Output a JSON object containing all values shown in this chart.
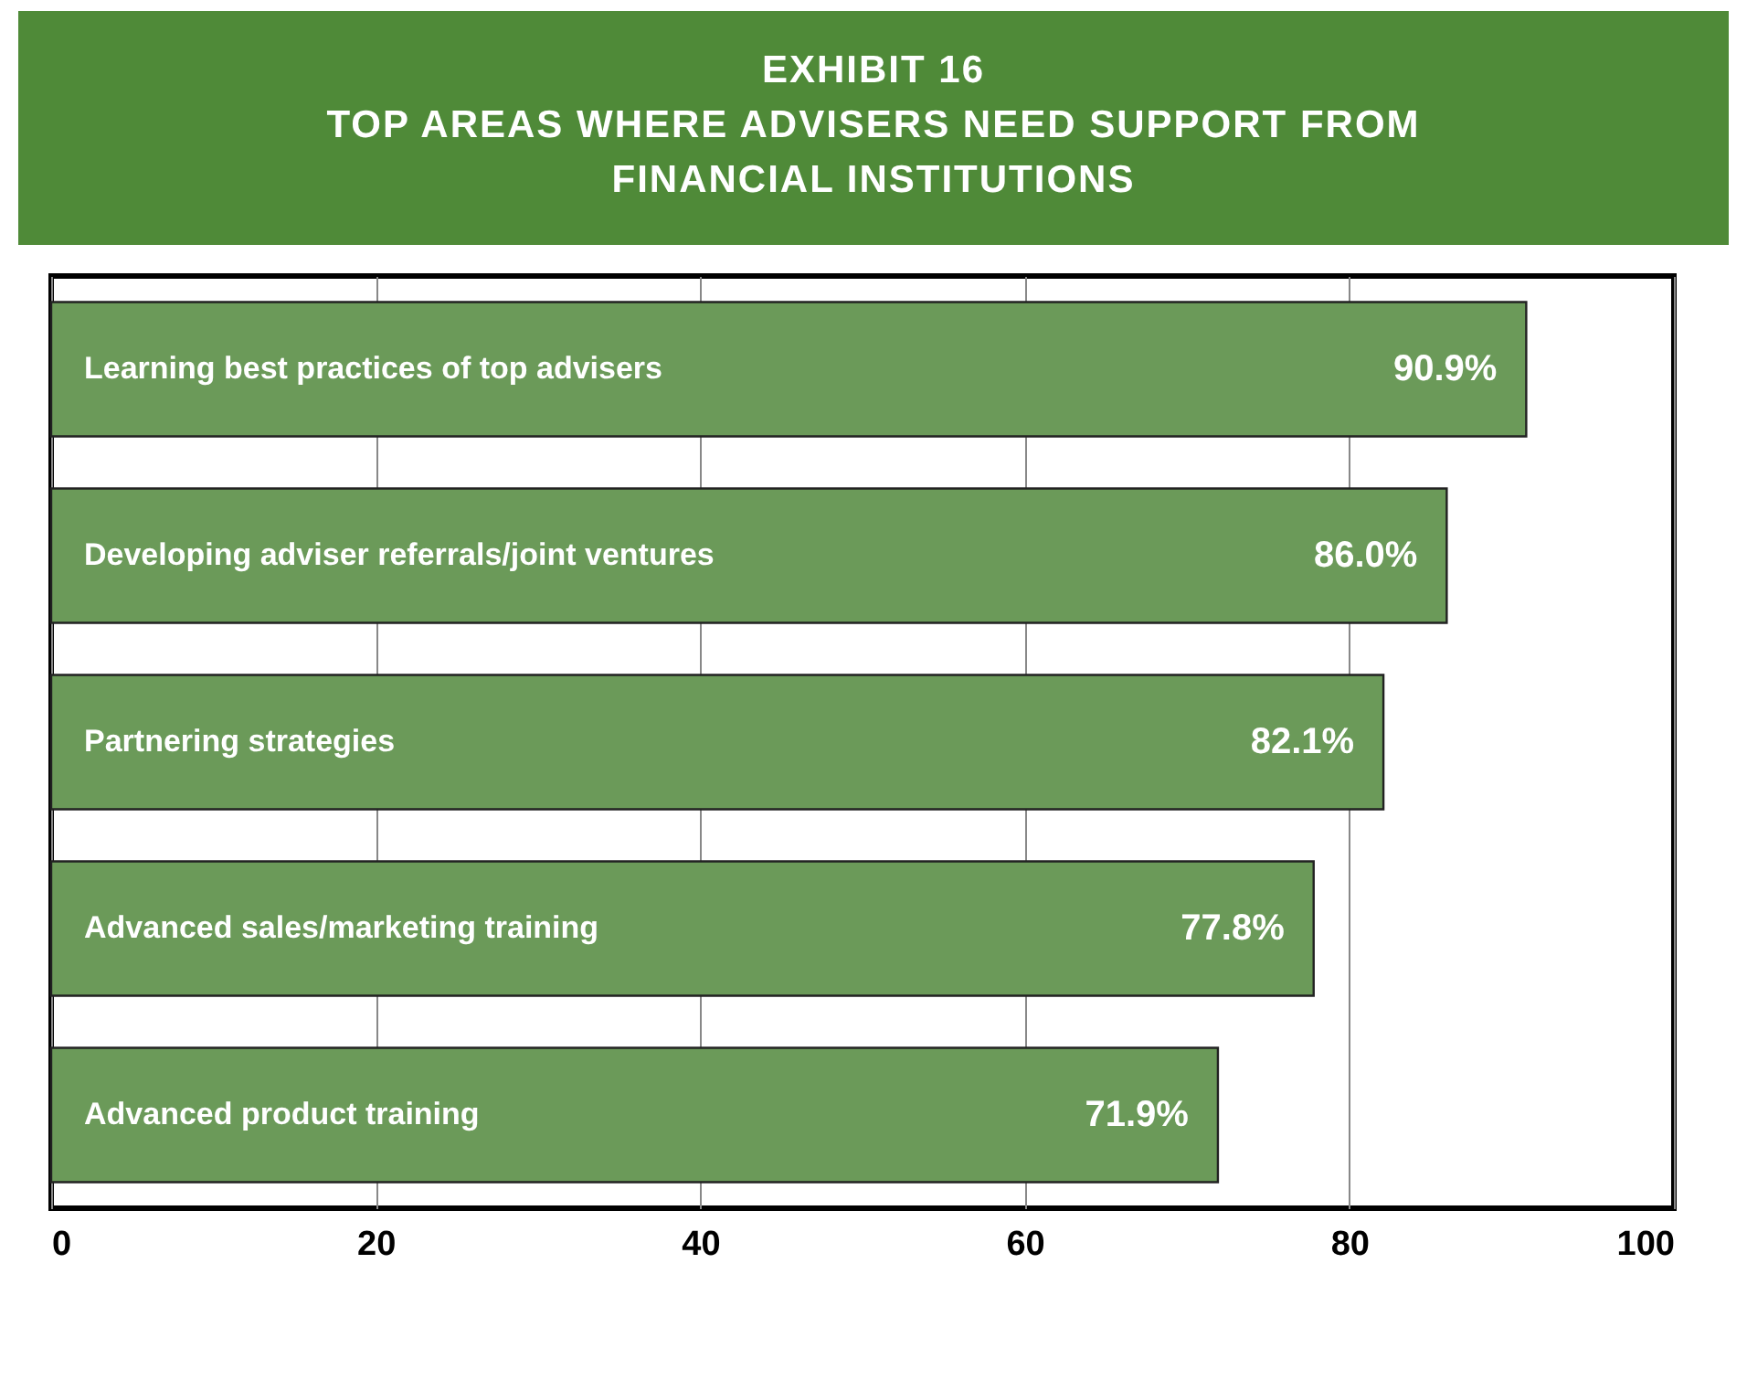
{
  "chart_data": {
    "type": "bar",
    "orientation": "horizontal",
    "title": "EXHIBIT 16",
    "subtitle": "TOP AREAS WHERE ADVISERS NEED SUPPORT FROM FINANCIAL INSTITUTIONS",
    "categories": [
      "Learning best practices of top advisers",
      "Developing adviser referrals/joint ventures",
      "Partnering strategies",
      "Advanced sales/marketing training",
      "Advanced product training"
    ],
    "values": [
      90.9,
      86.0,
      82.1,
      77.8,
      71.9
    ],
    "value_labels": [
      "90.9%",
      "86.0%",
      "82.1%",
      "77.8%",
      "71.9%"
    ],
    "color": "#6b9a59",
    "xlim": [
      0,
      100
    ],
    "xticks": [
      0,
      20,
      40,
      60,
      80,
      100
    ],
    "grid": "x",
    "tick_labels": "x"
  }
}
